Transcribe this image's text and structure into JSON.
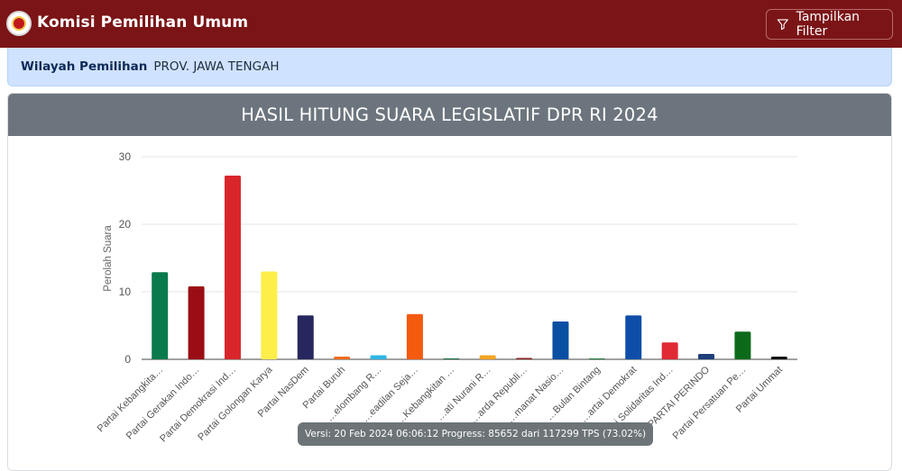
{
  "navbar": {
    "title": "Komisi Pemilihan Umum",
    "logo_icon": "kpu-logo-icon",
    "filter_button": {
      "label": "Tampilkan Filter",
      "icon": "filter-icon"
    },
    "bg_color": "#7b1416"
  },
  "region": {
    "label": "Wilayah Pemilihan",
    "value": "PROV. JAWA TENGAH"
  },
  "card": {
    "title": "HASIL HITUNG SUARA LEGISLATIF DPR RI 2024",
    "header_color": "#6c757d"
  },
  "chart_data": {
    "type": "bar",
    "title": "",
    "xlabel": "",
    "ylabel": "Perolah Suara",
    "ylim": [
      0,
      30
    ],
    "yticks": [
      0,
      10,
      20,
      30
    ],
    "grid": true,
    "legend": "none",
    "categories": [
      "Partai Kebangkita…",
      "Partai Gerakan Indo…",
      "Partai Demokrasi Ind…",
      "Partai Golongan Karya",
      "Partai NasDem",
      "Partai Buruh",
      "…elombang R…",
      "…eadilan Seja…",
      "…Kebangkitan …",
      "…ati Nurani R…",
      "…arda Republi…",
      "…manat Nasio…",
      "…Bulan Bintang",
      "…artai Demokrat",
      "Partai Solidaritas Ind…",
      "PARTAI PERINDO",
      "Partai Persatuan Pe…",
      "Partai Ummat"
    ],
    "values": [
      12.9,
      10.8,
      27.2,
      13.0,
      6.5,
      0.4,
      0.6,
      6.7,
      0.1,
      0.6,
      0.2,
      5.6,
      0.05,
      6.5,
      2.5,
      0.8,
      4.1,
      0.4
    ],
    "colors": [
      "#0a7a4b",
      "#9b0d14",
      "#d9262b",
      "#fdee4a",
      "#27275f",
      "#f26a1b",
      "#2fb6e3",
      "#f45b0f",
      "#0a6b3a",
      "#f3a523",
      "#8a1a1a",
      "#0b4fa3",
      "#1a7a3a",
      "#0f4ea8",
      "#e02a34",
      "#1d3f7a",
      "#0c6b1a",
      "#111111"
    ]
  },
  "tooltip": {
    "text": "Versi: 20 Feb 2024 06:06:12 Progress: 85652 dari 117299 TPS (73.02%)"
  }
}
